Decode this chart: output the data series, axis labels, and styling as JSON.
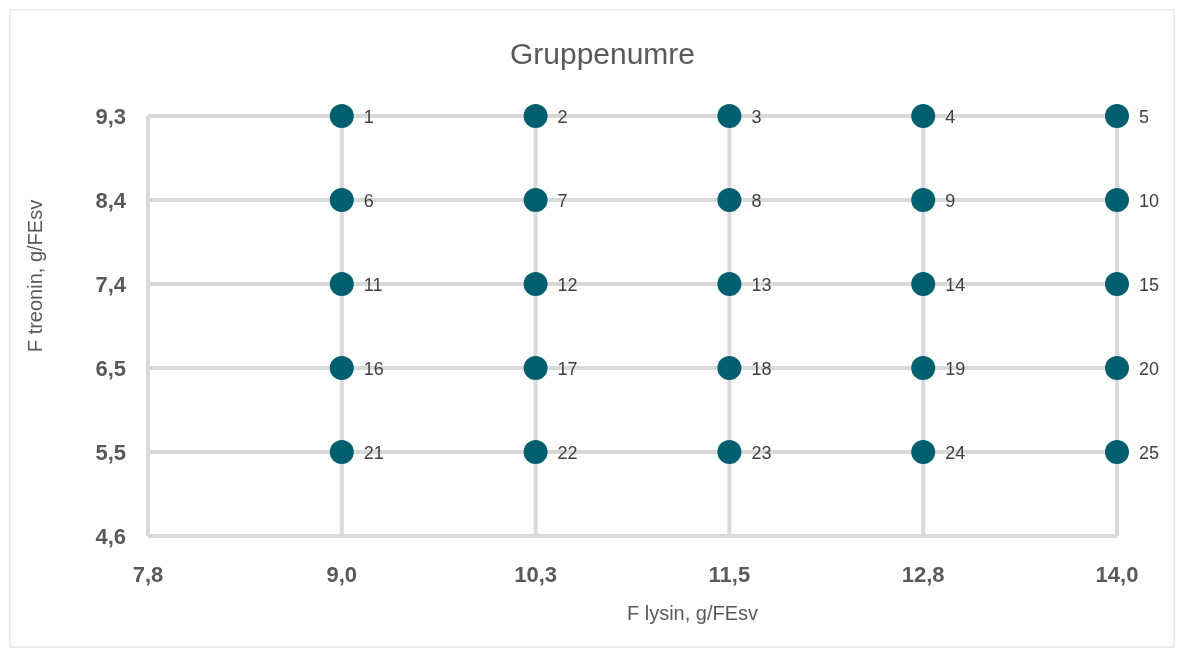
{
  "chart_data": {
    "type": "scatter",
    "title": "Gruppenumre",
    "xlabel": "F lysin, g/FEsv",
    "ylabel": "F treonin, g/FEsv",
    "xlim": [
      7.8,
      14.0
    ],
    "xticks": [
      {
        "value": 7.8,
        "label": "7,8"
      },
      {
        "value": 9.04,
        "label": "9,0"
      },
      {
        "value": 10.28,
        "label": "10,3"
      },
      {
        "value": 11.52,
        "label": "11,5"
      },
      {
        "value": 12.76,
        "label": "12,8"
      },
      {
        "value": 14.0,
        "label": "14,0"
      }
    ],
    "ylim": [
      4.6,
      9.3
    ],
    "yticks": [
      {
        "value": 4.6,
        "label": "4,6"
      },
      {
        "value": 5.54,
        "label": "5,5"
      },
      {
        "value": 6.48,
        "label": "6,5"
      },
      {
        "value": 7.42,
        "label": "7,4"
      },
      {
        "value": 8.36,
        "label": "8,4"
      },
      {
        "value": 9.3,
        "label": "9,3"
      }
    ],
    "grid": true,
    "marker": "circle",
    "series": [
      {
        "color": "#005f6e",
        "x": [
          9.04,
          10.28,
          11.52,
          12.76,
          14.0,
          9.04,
          10.28,
          11.52,
          12.76,
          14.0,
          9.04,
          10.28,
          11.52,
          12.76,
          14.0,
          9.04,
          10.28,
          11.52,
          12.76,
          14.0,
          9.04,
          10.28,
          11.52,
          12.76,
          14.0
        ],
        "values": [
          9.3,
          9.3,
          9.3,
          9.3,
          9.3,
          8.36,
          8.36,
          8.36,
          8.36,
          8.36,
          7.42,
          7.42,
          7.42,
          7.42,
          7.42,
          6.48,
          6.48,
          6.48,
          6.48,
          6.48,
          5.54,
          5.54,
          5.54,
          5.54,
          5.54
        ]
      }
    ],
    "annotations": [
      {
        "text": "1",
        "x": 9.04,
        "y": 9.3
      },
      {
        "text": "2",
        "x": 10.28,
        "y": 9.3
      },
      {
        "text": "3",
        "x": 11.52,
        "y": 9.3
      },
      {
        "text": "4",
        "x": 12.76,
        "y": 9.3
      },
      {
        "text": "5",
        "x": 14.0,
        "y": 9.3
      },
      {
        "text": "6",
        "x": 9.04,
        "y": 8.36
      },
      {
        "text": "7",
        "x": 10.28,
        "y": 8.36
      },
      {
        "text": "8",
        "x": 11.52,
        "y": 8.36
      },
      {
        "text": "9",
        "x": 12.76,
        "y": 8.36
      },
      {
        "text": "10",
        "x": 14.0,
        "y": 8.36
      },
      {
        "text": "11",
        "x": 9.04,
        "y": 7.42
      },
      {
        "text": "12",
        "x": 10.28,
        "y": 7.42
      },
      {
        "text": "13",
        "x": 11.52,
        "y": 7.42
      },
      {
        "text": "14",
        "x": 12.76,
        "y": 7.42
      },
      {
        "text": "15",
        "x": 14.0,
        "y": 7.42
      },
      {
        "text": "16",
        "x": 9.04,
        "y": 6.48
      },
      {
        "text": "17",
        "x": 10.28,
        "y": 6.48
      },
      {
        "text": "18",
        "x": 11.52,
        "y": 6.48
      },
      {
        "text": "19",
        "x": 12.76,
        "y": 6.48
      },
      {
        "text": "20",
        "x": 14.0,
        "y": 6.48
      },
      {
        "text": "21",
        "x": 9.04,
        "y": 5.54
      },
      {
        "text": "22",
        "x": 10.28,
        "y": 5.54
      },
      {
        "text": "23",
        "x": 11.52,
        "y": 5.54
      },
      {
        "text": "24",
        "x": 12.76,
        "y": 5.54
      },
      {
        "text": "25",
        "x": 14.0,
        "y": 5.54
      }
    ]
  }
}
